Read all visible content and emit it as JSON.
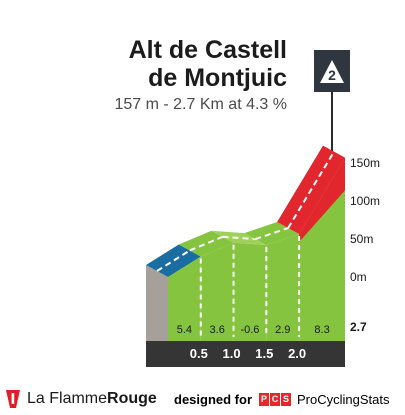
{
  "header": {
    "title_line1": "Alt de Castell",
    "title_line2": "de Montjuic",
    "subtitle": "157 m - 2.7 Km at 4.3 %"
  },
  "climb_marker": {
    "label": "2"
  },
  "chart_data": {
    "type": "area",
    "title": "Alt de Castell de Montjuic",
    "subtitle": "157 m - 2.7 Km at 4.3 %",
    "x_unit": "km",
    "y_unit": "m",
    "xlim": [
      0,
      2.7
    ],
    "ylim": [
      0,
      157
    ],
    "y_ticks": [
      {
        "value": 150,
        "label": "150m"
      },
      {
        "value": 100,
        "label": "100m"
      },
      {
        "value": 50,
        "label": "50m"
      },
      {
        "value": 0,
        "label": "0m"
      }
    ],
    "x_ticks": [
      {
        "value": 0.5,
        "label": "0.5"
      },
      {
        "value": 1.0,
        "label": "1.0"
      },
      {
        "value": 1.5,
        "label": "1.5"
      },
      {
        "value": 2.0,
        "label": "2.0"
      }
    ],
    "end_distance_label": "2.7",
    "points": [
      {
        "x": 0,
        "y": 0
      },
      {
        "x": 0.5,
        "y": 27
      },
      {
        "x": 1.0,
        "y": 45
      },
      {
        "x": 1.5,
        "y": 42
      },
      {
        "x": 2.0,
        "y": 56.5
      },
      {
        "x": 2.7,
        "y": 114
      },
      {
        "x": 2.7,
        "y": 157
      }
    ],
    "segments": [
      {
        "from": 0,
        "to": 0.5,
        "gradient": 5.4,
        "label": "5.4",
        "color": "#1a6da1"
      },
      {
        "from": 0.5,
        "to": 1.0,
        "gradient": 3.6,
        "label": "3.6",
        "color": "#85c43f"
      },
      {
        "from": 1.0,
        "to": 1.5,
        "gradient": -0.6,
        "label": "-0.6",
        "color": "#9ed15a"
      },
      {
        "from": 1.5,
        "to": 2.0,
        "gradient": 2.9,
        "label": "2.9",
        "color": "#85c43f"
      },
      {
        "from": 2.0,
        "to": 2.7,
        "gradient": 8.3,
        "label": "8.3",
        "color": "#e1262d"
      }
    ],
    "colors": {
      "side_wall": "#a5a09a",
      "axis_band": "#353535",
      "dashed_lines": "#ffffff",
      "top_stripe": "#ffffff"
    }
  },
  "footer": {
    "brand_light": "La Flamme",
    "brand_bold": "Rouge",
    "designed_label": "designed for",
    "pcs_letters": [
      "P",
      "C",
      "S"
    ],
    "pcs_name": "ProCyclingStats"
  }
}
